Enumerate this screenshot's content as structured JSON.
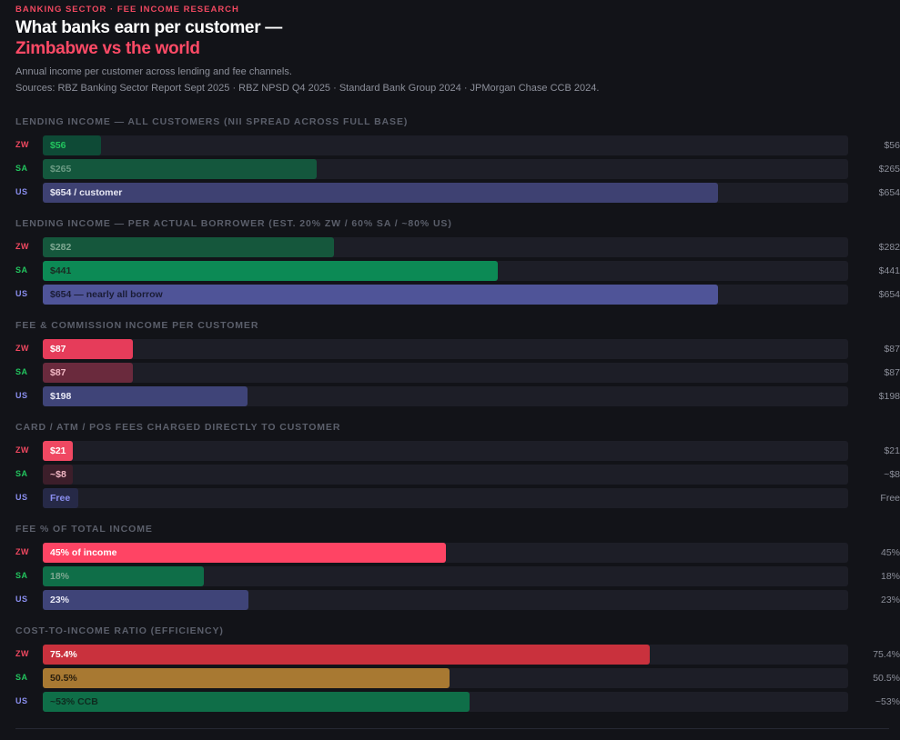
{
  "header": {
    "eyebrow": "BANKING SECTOR · FEE INCOME RESEARCH",
    "title_line1": "What banks earn per customer —",
    "title_line2": "Zimbabwe vs the world",
    "subtitle": "Annual income per customer across lending and fee channels.",
    "sources": "Sources: RBZ Banking Sector Report Sept 2025 · RBZ NPSD Q4 2025 · Standard Bank Group 2024 · JPMorgan Chase CCB 2024."
  },
  "colors": {
    "zw_code": "#f04860",
    "sa_code": "#22c55e",
    "us_code": "#8b8ff0"
  },
  "chart_data": [
    {
      "type": "bar",
      "title": "LENDING INCOME — ALL CUSTOMERS (NII SPREAD ACROSS FULL BASE)",
      "max": 780,
      "rows": [
        {
          "code": "ZW",
          "value": 56,
          "label": "$56",
          "display": "$56",
          "color": "#0e4a36",
          "label_color": "#22c55e"
        },
        {
          "code": "SA",
          "value": 265,
          "label": "$265",
          "display": "$265",
          "color": "#14573d",
          "label_color": "#6b9b84"
        },
        {
          "code": "US",
          "value": 654,
          "label": "$654 / customer",
          "display": "$654",
          "color": "#3e4172",
          "label_color": "#e8e8f4"
        }
      ]
    },
    {
      "type": "bar",
      "title": "LENDING INCOME — PER ACTUAL BORROWER (EST. 20% ZW / 60% SA / ~80% US)",
      "max": 780,
      "rows": [
        {
          "code": "ZW",
          "value": 282,
          "label": "$282",
          "display": "$282",
          "color": "#15573c",
          "label_color": "#7fa892"
        },
        {
          "code": "SA",
          "value": 441,
          "label": "$441",
          "display": "$441",
          "color": "#0c8a55",
          "label_color": "#1a2a22"
        },
        {
          "code": "US",
          "value": 654,
          "label": "$654 — nearly all borrow",
          "display": "$654",
          "color": "#4f5498",
          "label_color": "#1a1c35"
        }
      ]
    },
    {
      "type": "bar",
      "title": "FEE & COMMISSION INCOME PER CUSTOMER",
      "max": 780,
      "rows": [
        {
          "code": "ZW",
          "value": 87,
          "label": "$87",
          "display": "$87",
          "color": "#e63c5a",
          "label_color": "#ffffff"
        },
        {
          "code": "SA",
          "value": 87,
          "label": "$87",
          "display": "$87",
          "color": "#6a2a3d",
          "label_color": "#f2b7c4"
        },
        {
          "code": "US",
          "value": 198,
          "label": "$198",
          "display": "$198",
          "color": "#3f4478",
          "label_color": "#e8e8f4"
        }
      ]
    },
    {
      "type": "bar",
      "title": "CARD / ATM / POS FEES CHARGED DIRECTLY TO CUSTOMER",
      "max": 780,
      "rows": [
        {
          "code": "ZW",
          "value": 21,
          "label": "$21",
          "display": "$21",
          "color": "#f04862",
          "label_color": "#ffffff"
        },
        {
          "code": "SA",
          "value": 8,
          "label": "~$8",
          "display": "~$8",
          "color": "#3c1e2a",
          "label_color": "#f2b7c4"
        },
        {
          "code": "US",
          "value": 0,
          "label": "Free",
          "display": "Free",
          "color": "#262947",
          "label_color": "#8b8ff0"
        }
      ]
    },
    {
      "type": "bar",
      "title": "FEE % OF TOTAL INCOME",
      "max": 90,
      "rows": [
        {
          "code": "ZW",
          "value": 45,
          "label": "45% of income",
          "display": "45%",
          "color": "#ff4464",
          "label_color": "#ffffff"
        },
        {
          "code": "SA",
          "value": 18,
          "label": "18%",
          "display": "18%",
          "color": "#0f6e48",
          "label_color": "#7fa892"
        },
        {
          "code": "US",
          "value": 23,
          "label": "23%",
          "display": "23%",
          "color": "#3f4478",
          "label_color": "#e8e8f4"
        }
      ]
    },
    {
      "type": "bar",
      "title": "COST-TO-INCOME RATIO (EFFICIENCY)",
      "max": 100,
      "rows": [
        {
          "code": "ZW",
          "value": 75.4,
          "label": "75.4%",
          "display": "75.4%",
          "color": "#c9313d",
          "label_color": "#ffffff"
        },
        {
          "code": "SA",
          "value": 50.5,
          "label": "50.5%",
          "display": "50.5%",
          "color": "#a87932",
          "label_color": "#2a1f0e"
        },
        {
          "code": "US",
          "value": 53,
          "label": "~53% CCB",
          "display": "~53%",
          "color": "#0f6e48",
          "label_color": "#0f2a1f"
        }
      ]
    }
  ]
}
